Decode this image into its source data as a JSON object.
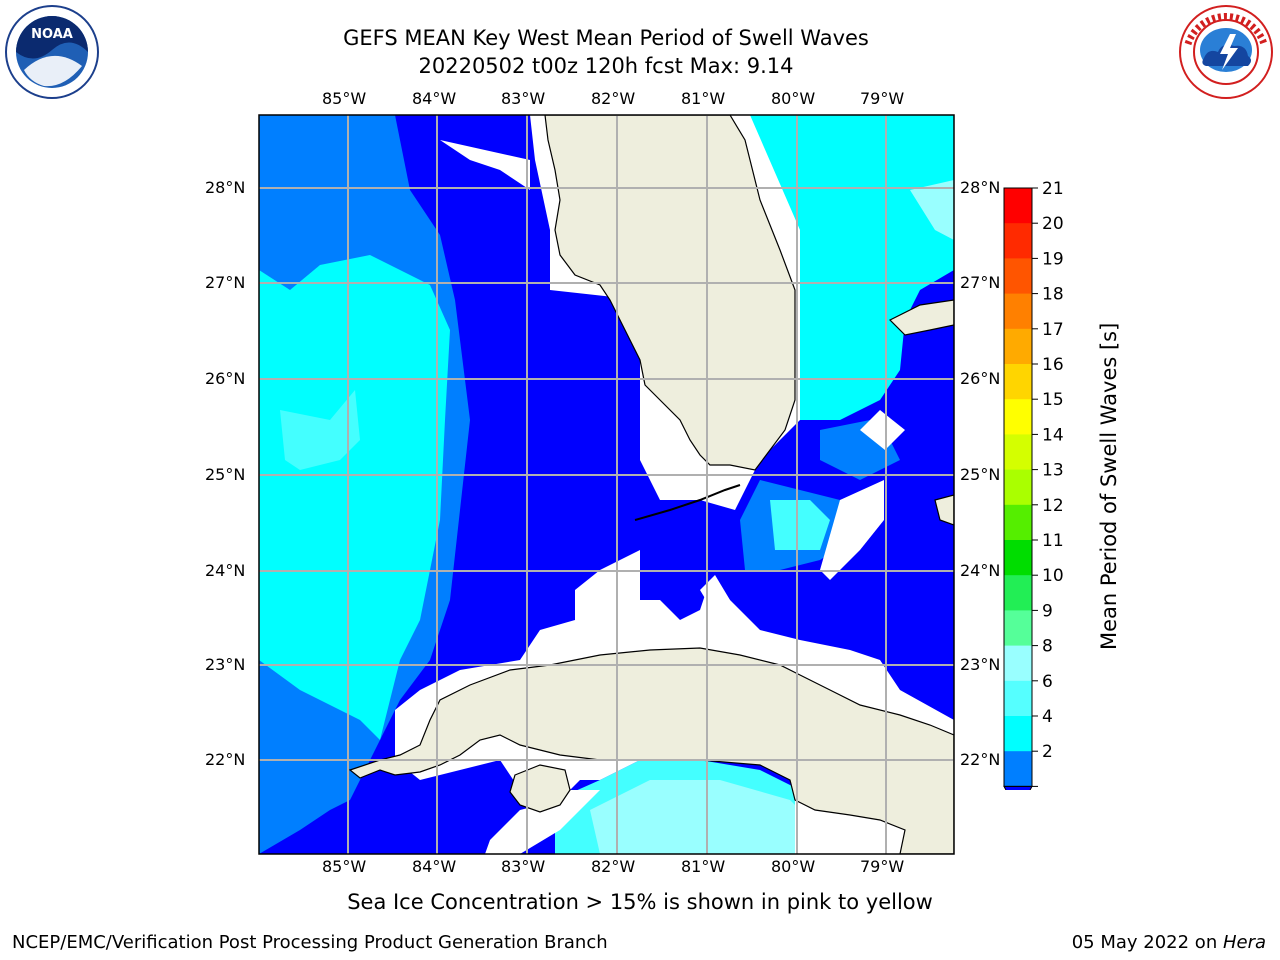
{
  "header": {
    "title_line1": "GEFS MEAN Key West Mean Period of Swell Waves",
    "title_line2": "20220502 t00z 120h fcst   Max: 9.14"
  },
  "map": {
    "lon_labels": [
      "85°W",
      "84°W",
      "83°W",
      "82°W",
      "81°W",
      "80°W",
      "79°W"
    ],
    "lat_labels": [
      "28°N",
      "27°N",
      "26°N",
      "25°N",
      "24°N",
      "23°N",
      "22°N"
    ],
    "colors": {
      "ocean_2_4": "#0000ff",
      "ocean_band_2": "#007fff",
      "ocean_4_6": "#00ffff",
      "ocean_6_8": "#44ffff",
      "ocean_8_9": "#99ffff",
      "land": "#eeeedd",
      "grid": "#b0b0b0"
    }
  },
  "colorbar": {
    "label": "Mean Period of Swell Waves [s]",
    "ticks": [
      "21",
      "20",
      "19",
      "18",
      "17",
      "16",
      "15",
      "14",
      "13",
      "12",
      "11",
      "10",
      "9",
      "8",
      "6",
      "4",
      "2"
    ],
    "colors": [
      "#ff0000",
      "#ff2a00",
      "#ff5500",
      "#ff8000",
      "#ffaa00",
      "#ffd500",
      "#ffff00",
      "#d4ff00",
      "#aaff00",
      "#55ee00",
      "#00dd00",
      "#22ee55",
      "#55ff99",
      "#99ffff",
      "#55ffff",
      "#00ffff",
      "#007fff"
    ],
    "extend_color": "#0000ff"
  },
  "note": "Sea Ice Concentration > 15% is shown in pink to yellow",
  "footer": {
    "left": "NCEP/EMC/Verification Post Processing Product Generation Branch",
    "date": "05 May 2022 on ",
    "machine": "Hera"
  },
  "logos": {
    "noaa": "NOAA",
    "nws": "NATIONAL WEATHER SERVICE"
  }
}
